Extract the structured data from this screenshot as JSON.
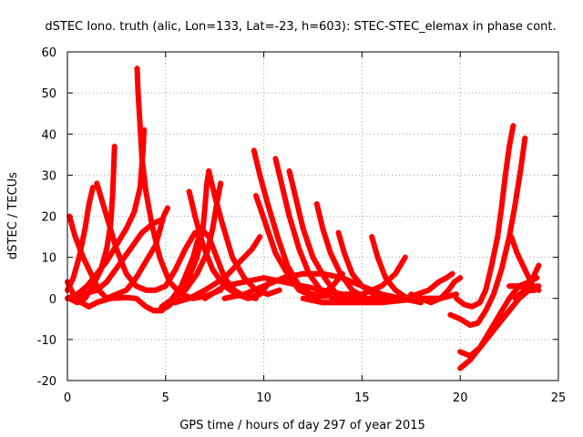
{
  "chart_data": {
    "type": "scatter",
    "title": "dSTEC Iono. truth (alic, Lon=133, Lat=-23, h=603): STEC-STEC_elemax in phase cont.",
    "xlabel": "GPS time / hours of day 297 of year 2015",
    "ylabel": "dSTEC  / TECUs",
    "xlim": [
      0,
      25
    ],
    "ylim": [
      -20,
      60
    ],
    "xticks": [
      0,
      5,
      10,
      15,
      20,
      25
    ],
    "yticks": [
      -20,
      -10,
      0,
      10,
      20,
      30,
      40,
      50,
      60
    ],
    "grid": true,
    "marker": "+",
    "color": "#ff0000",
    "series": [
      {
        "points": [
          [
            0.0,
            4
          ],
          [
            0.3,
            1
          ],
          [
            0.7,
            -1
          ],
          [
            1.1,
            -2
          ],
          [
            1.5,
            -1
          ],
          [
            2.2,
            0
          ],
          [
            3.0,
            0.2
          ],
          [
            3.5,
            0
          ],
          [
            4.0,
            -2
          ],
          [
            4.4,
            -3
          ],
          [
            4.8,
            -3
          ],
          [
            5.2,
            -1
          ],
          [
            5.8,
            3
          ],
          [
            6.4,
            10
          ],
          [
            6.8,
            17
          ],
          [
            7.2,
            15
          ],
          [
            7.6,
            10
          ],
          [
            8.0,
            5
          ],
          [
            8.5,
            2
          ],
          [
            9.0,
            0.5
          ],
          [
            9.6,
            0
          ]
        ]
      },
      {
        "points": [
          [
            0.0,
            0
          ],
          [
            0.5,
            1
          ],
          [
            1.0,
            3
          ],
          [
            1.5,
            6
          ],
          [
            2.0,
            9
          ],
          [
            2.5,
            13
          ],
          [
            3.0,
            17
          ],
          [
            3.4,
            21
          ],
          [
            3.7,
            27
          ],
          [
            3.85,
            36
          ],
          [
            3.9,
            41
          ]
        ]
      },
      {
        "points": [
          [
            0.1,
            20
          ],
          [
            0.4,
            15
          ],
          [
            0.8,
            10
          ],
          [
            1.2,
            6
          ],
          [
            1.6,
            2
          ],
          [
            2.0,
            0
          ],
          [
            2.5,
            1
          ],
          [
            3.0,
            2
          ],
          [
            3.5,
            5
          ],
          [
            4.0,
            9
          ],
          [
            4.5,
            13
          ],
          [
            4.9,
            20
          ],
          [
            5.1,
            22
          ]
        ]
      },
      {
        "points": [
          [
            0.0,
            2
          ],
          [
            0.3,
            5
          ],
          [
            0.6,
            10
          ],
          [
            0.9,
            17
          ],
          [
            1.1,
            23
          ],
          [
            1.3,
            27
          ]
        ]
      },
      {
        "points": [
          [
            0.1,
            0
          ],
          [
            0.5,
            -1
          ],
          [
            0.9,
            0
          ],
          [
            1.3,
            3
          ],
          [
            1.7,
            7
          ],
          [
            2.0,
            12
          ],
          [
            2.2,
            18
          ],
          [
            2.3,
            25
          ],
          [
            2.35,
            31
          ],
          [
            2.4,
            37
          ]
        ]
      },
      {
        "points": [
          [
            1.5,
            28
          ],
          [
            2.0,
            20
          ],
          [
            2.5,
            12
          ],
          [
            3.0,
            6
          ],
          [
            3.5,
            3
          ],
          [
            4.0,
            2
          ],
          [
            4.5,
            2
          ],
          [
            5.0,
            3
          ],
          [
            5.5,
            7
          ],
          [
            6.0,
            12
          ],
          [
            6.5,
            16
          ]
        ]
      },
      {
        "points": [
          [
            0.3,
            0
          ],
          [
            0.8,
            1
          ],
          [
            1.5,
            2
          ],
          [
            2.0,
            4
          ],
          [
            2.6,
            8
          ],
          [
            3.2,
            12
          ],
          [
            3.8,
            16
          ],
          [
            4.3,
            18
          ],
          [
            4.7,
            19
          ]
        ]
      },
      {
        "points": [
          [
            3.55,
            56
          ],
          [
            3.6,
            50
          ],
          [
            3.7,
            42
          ],
          [
            3.8,
            34
          ],
          [
            4.0,
            26
          ],
          [
            4.3,
            18
          ],
          [
            4.7,
            10
          ],
          [
            5.2,
            4
          ],
          [
            5.8,
            1
          ],
          [
            6.4,
            0
          ],
          [
            7.0,
            0.5
          ],
          [
            7.8,
            2
          ]
        ]
      },
      {
        "points": [
          [
            4.6,
            -3
          ],
          [
            5.1,
            -2
          ],
          [
            5.6,
            0
          ],
          [
            6.1,
            4
          ],
          [
            6.6,
            10
          ],
          [
            6.9,
            17
          ],
          [
            7.0,
            22
          ],
          [
            7.1,
            28
          ],
          [
            7.2,
            31
          ]
        ]
      },
      {
        "points": [
          [
            6.2,
            26
          ],
          [
            6.5,
            20
          ],
          [
            6.9,
            13
          ],
          [
            7.4,
            7
          ],
          [
            8.0,
            3
          ],
          [
            8.6,
            1
          ],
          [
            9.2,
            0
          ],
          [
            9.8,
            1
          ],
          [
            10.3,
            4
          ]
        ]
      },
      {
        "points": [
          [
            4.8,
            -2
          ],
          [
            5.4,
            0
          ],
          [
            6.0,
            2
          ],
          [
            6.6,
            6
          ],
          [
            7.1,
            11
          ],
          [
            7.4,
            17
          ],
          [
            7.6,
            23
          ],
          [
            7.8,
            28
          ]
        ]
      },
      {
        "points": [
          [
            7.2,
            31
          ],
          [
            7.5,
            25
          ],
          [
            7.9,
            18
          ],
          [
            8.4,
            10
          ],
          [
            9.0,
            5
          ],
          [
            9.6,
            2
          ],
          [
            10.2,
            1
          ],
          [
            10.8,
            2
          ]
        ]
      },
      {
        "points": [
          [
            5.5,
            -1
          ],
          [
            6.2,
            0
          ],
          [
            7.0,
            2
          ],
          [
            8.0,
            5
          ],
          [
            8.8,
            9
          ],
          [
            9.4,
            12
          ],
          [
            9.8,
            15
          ]
        ]
      },
      {
        "points": [
          [
            9.5,
            36
          ],
          [
            9.8,
            30
          ],
          [
            10.2,
            23
          ],
          [
            10.7,
            15
          ],
          [
            11.2,
            8
          ],
          [
            11.8,
            3
          ],
          [
            12.4,
            1
          ],
          [
            13.0,
            1
          ],
          [
            13.5,
            3
          ],
          [
            14.0,
            6
          ]
        ]
      },
      {
        "points": [
          [
            9.6,
            25
          ],
          [
            10.1,
            18
          ],
          [
            10.6,
            11
          ],
          [
            11.2,
            6
          ],
          [
            11.8,
            2
          ],
          [
            12.5,
            0.5
          ],
          [
            13.2,
            0.5
          ]
        ]
      },
      {
        "points": [
          [
            10.6,
            34
          ],
          [
            10.9,
            28
          ],
          [
            11.3,
            20
          ],
          [
            11.8,
            12
          ],
          [
            12.3,
            6
          ],
          [
            12.9,
            2
          ],
          [
            13.5,
            0
          ],
          [
            14.1,
            0
          ]
        ]
      },
      {
        "points": [
          [
            11.3,
            31
          ],
          [
            11.6,
            25
          ],
          [
            12.0,
            17
          ],
          [
            12.5,
            10
          ],
          [
            13.1,
            5
          ],
          [
            13.7,
            1
          ],
          [
            14.3,
            0
          ],
          [
            15.0,
            0
          ]
        ]
      },
      {
        "points": [
          [
            12.7,
            23
          ],
          [
            13.0,
            17
          ],
          [
            13.4,
            11
          ],
          [
            13.9,
            6
          ],
          [
            14.5,
            2
          ],
          [
            15.2,
            0
          ],
          [
            15.9,
            0
          ]
        ]
      },
      {
        "points": [
          [
            13.8,
            16
          ],
          [
            14.1,
            11
          ],
          [
            14.5,
            6
          ],
          [
            15.0,
            3
          ],
          [
            15.6,
            1
          ],
          [
            16.3,
            0
          ],
          [
            17.0,
            0
          ]
        ]
      },
      {
        "points": [
          [
            15.5,
            15
          ],
          [
            15.8,
            10
          ],
          [
            16.2,
            5
          ],
          [
            16.7,
            2
          ],
          [
            17.3,
            0
          ],
          [
            18.0,
            -0.5
          ]
        ]
      },
      {
        "points": [
          [
            7.0,
            0
          ],
          [
            8.0,
            3
          ],
          [
            9.0,
            4
          ],
          [
            10.0,
            5
          ],
          [
            11.0,
            4
          ],
          [
            12.0,
            3
          ],
          [
            13.0,
            2
          ],
          [
            14.0,
            1
          ],
          [
            15.0,
            1
          ],
          [
            16.0,
            3
          ],
          [
            16.7,
            6
          ],
          [
            17.2,
            10
          ]
        ]
      },
      {
        "points": [
          [
            8.0,
            0
          ],
          [
            9.0,
            1
          ],
          [
            10.0,
            3
          ],
          [
            11.0,
            5
          ],
          [
            12.0,
            6
          ],
          [
            13.0,
            6
          ],
          [
            14.0,
            5
          ],
          [
            15.0,
            3
          ],
          [
            16.0,
            1
          ],
          [
            17.0,
            0
          ],
          [
            18.0,
            -1
          ]
        ]
      },
      {
        "points": [
          [
            12.0,
            0
          ],
          [
            13.0,
            -1
          ],
          [
            14.0,
            -1
          ],
          [
            15.0,
            -1
          ],
          [
            16.0,
            -1
          ],
          [
            17.0,
            -0.5
          ],
          [
            18.0,
            0
          ],
          [
            19.0,
            0
          ],
          [
            19.8,
            1
          ]
        ]
      },
      {
        "points": [
          [
            17.5,
            1
          ],
          [
            18.0,
            0
          ],
          [
            18.5,
            -1
          ],
          [
            19.0,
            0
          ],
          [
            19.4,
            2
          ],
          [
            19.7,
            4
          ],
          [
            20.0,
            5
          ]
        ]
      },
      {
        "points": [
          [
            17.2,
            0
          ],
          [
            17.8,
            1
          ],
          [
            18.4,
            2
          ],
          [
            18.9,
            4
          ],
          [
            19.3,
            5
          ],
          [
            19.6,
            6
          ]
        ]
      },
      {
        "points": [
          [
            19.8,
            0
          ],
          [
            20.2,
            -1.5
          ],
          [
            20.6,
            -2
          ],
          [
            21.0,
            -1
          ],
          [
            21.3,
            2
          ],
          [
            21.6,
            8
          ],
          [
            21.9,
            15
          ],
          [
            22.1,
            22
          ],
          [
            22.3,
            30
          ],
          [
            22.5,
            37
          ],
          [
            22.7,
            42
          ]
        ]
      },
      {
        "points": [
          [
            19.5,
            -4
          ],
          [
            20.0,
            -5
          ],
          [
            20.5,
            -6.5
          ],
          [
            20.9,
            -6
          ],
          [
            21.3,
            -3
          ],
          [
            21.7,
            1
          ],
          [
            22.1,
            7
          ],
          [
            22.5,
            15
          ],
          [
            22.8,
            23
          ],
          [
            23.1,
            32
          ],
          [
            23.3,
            39
          ]
        ]
      },
      {
        "points": [
          [
            20.0,
            -13
          ],
          [
            20.5,
            -14
          ],
          [
            21.0,
            -12
          ],
          [
            21.5,
            -8
          ],
          [
            22.0,
            -4
          ],
          [
            22.5,
            0
          ],
          [
            23.0,
            3
          ],
          [
            23.5,
            4
          ],
          [
            23.9,
            5
          ]
        ]
      },
      {
        "points": [
          [
            20.0,
            -17
          ],
          [
            20.5,
            -15
          ],
          [
            21.0,
            -12
          ],
          [
            21.5,
            -9
          ],
          [
            22.0,
            -6
          ],
          [
            22.5,
            -3
          ],
          [
            23.0,
            0
          ],
          [
            23.5,
            2
          ],
          [
            23.9,
            3
          ]
        ]
      },
      {
        "points": [
          [
            22.5,
            3
          ],
          [
            23.0,
            3
          ],
          [
            23.5,
            2
          ],
          [
            23.8,
            2
          ],
          [
            24.0,
            3
          ]
        ]
      },
      {
        "points": [
          [
            22.6,
            15
          ],
          [
            22.9,
            11
          ],
          [
            23.3,
            7
          ],
          [
            23.7,
            3
          ],
          [
            24.0,
            2
          ]
        ]
      },
      {
        "points": [
          [
            22.8,
            0
          ],
          [
            23.3,
            2
          ],
          [
            23.7,
            5
          ],
          [
            24.0,
            8
          ]
        ]
      }
    ]
  }
}
